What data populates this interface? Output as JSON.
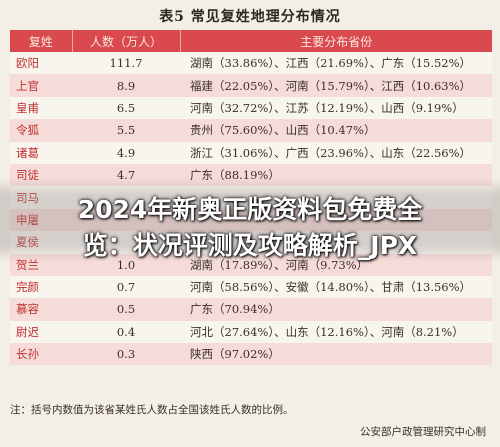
{
  "title": "表5 常见复姓地理分布情况",
  "table": {
    "headers": [
      "复姓",
      "人数（万人）",
      "主要分布省份"
    ],
    "rows": [
      {
        "surname": "欧阳",
        "population": "111.7",
        "provinces": "湖南（33.86%）、江西（21.69%）、广东（15.52%）"
      },
      {
        "surname": "上官",
        "population": "8.9",
        "provinces": "福建（22.05%）、河南（15.79%）、江西（10.63%）"
      },
      {
        "surname": "皇甫",
        "population": "6.5",
        "provinces": "河南（32.72%）、江苏（12.19%）、山西（9.19%）"
      },
      {
        "surname": "令狐",
        "population": "5.5",
        "provinces": "贵州（75.60%）、山西（10.47%）"
      },
      {
        "surname": "诸葛",
        "population": "4.9",
        "provinces": "浙江（31.06%）、广西（23.96%）、山东（22.56%）"
      },
      {
        "surname": "司徒",
        "population": "4.7",
        "provinces": "广东（88.19%）"
      },
      {
        "surname": "司马",
        "population": "",
        "provinces": ""
      },
      {
        "surname": "申屠",
        "population": "",
        "provinces": ""
      },
      {
        "surname": "夏侯",
        "population": "",
        "provinces": ""
      },
      {
        "surname": "贺兰",
        "population": "1.0",
        "provinces": "湖南（17.89%）、河南（9.73%）"
      },
      {
        "surname": "完颜",
        "population": "0.7",
        "provinces": "河南（58.56%）、安徽（14.80%）、甘肃（13.56%）"
      },
      {
        "surname": "慕容",
        "population": "0.5",
        "provinces": "广东（70.94%）"
      },
      {
        "surname": "尉迟",
        "population": "0.4",
        "provinces": "河北（27.64%）、山东（12.16%）、河南（8.21%）"
      },
      {
        "surname": "长孙",
        "population": "0.3",
        "provinces": "陕西（97.02%）"
      }
    ]
  },
  "note": "注：括号内数值为该省某姓氏人数占全国该姓氏人数的比例。",
  "source": "公安部户政管理研究中心制",
  "overlay": {
    "line1": "2024年新奥正版资料包免费全",
    "line2": "览：状况评测及攻略解析_JPX"
  }
}
